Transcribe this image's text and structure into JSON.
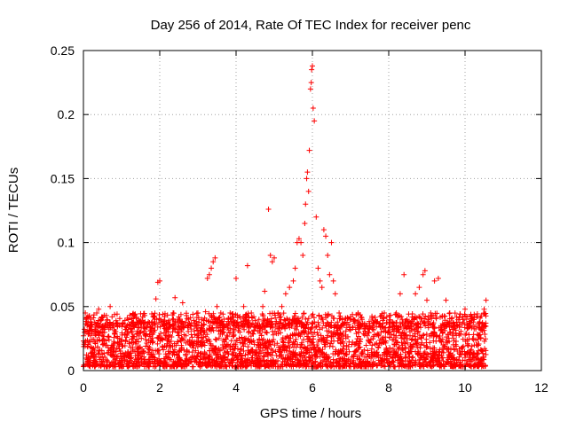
{
  "chart_data": {
    "type": "scatter",
    "title": "Day 256 of 2014, Rate Of TEC Index for receiver penc",
    "xlabel": "GPS time / hours",
    "ylabel": "ROTI / TECUs",
    "xlim": [
      0,
      12
    ],
    "ylim": [
      0,
      0.25
    ],
    "x_ticks": [
      0,
      2,
      4,
      6,
      8,
      10,
      12
    ],
    "y_ticks": [
      0,
      0.05,
      0.1,
      0.15,
      0.2,
      0.25
    ],
    "x_tick_labels": [
      "0",
      "2",
      "4",
      "6",
      "8",
      "10",
      "12"
    ],
    "y_tick_labels": [
      "0",
      "0.05",
      "0.1",
      "0.15",
      "0.2",
      "0.25"
    ],
    "grid": true,
    "marker": "+",
    "series": [
      {
        "name": "ROTI",
        "color": "#ff0000",
        "points": [
          [
            0.05,
            0.045
          ],
          [
            0.1,
            0.042
          ],
          [
            0.2,
            0.038
          ],
          [
            0.3,
            0.032
          ],
          [
            0.35,
            0.045
          ],
          [
            0.4,
            0.048
          ],
          [
            0.5,
            0.035
          ],
          [
            0.6,
            0.043
          ],
          [
            0.7,
            0.05
          ],
          [
            0.75,
            0.042
          ],
          [
            1.1,
            0.032
          ],
          [
            1.2,
            0.036
          ],
          [
            1.5,
            0.03
          ],
          [
            1.8,
            0.038
          ],
          [
            1.9,
            0.056
          ],
          [
            1.95,
            0.069
          ],
          [
            2.0,
            0.07
          ],
          [
            2.1,
            0.035
          ],
          [
            2.35,
            0.045
          ],
          [
            2.4,
            0.057
          ],
          [
            2.5,
            0.042
          ],
          [
            2.6,
            0.053
          ],
          [
            2.7,
            0.043
          ],
          [
            2.8,
            0.035
          ],
          [
            3.0,
            0.045
          ],
          [
            3.1,
            0.04
          ],
          [
            3.2,
            0.046
          ],
          [
            3.25,
            0.072
          ],
          [
            3.3,
            0.075
          ],
          [
            3.35,
            0.08
          ],
          [
            3.4,
            0.085
          ],
          [
            3.45,
            0.088
          ],
          [
            3.5,
            0.05
          ],
          [
            3.6,
            0.045
          ],
          [
            3.8,
            0.04
          ],
          [
            3.95,
            0.035
          ],
          [
            4.0,
            0.072
          ],
          [
            4.1,
            0.03
          ],
          [
            4.2,
            0.05
          ],
          [
            4.3,
            0.082
          ],
          [
            4.4,
            0.045
          ],
          [
            4.6,
            0.04
          ],
          [
            4.7,
            0.05
          ],
          [
            4.75,
            0.062
          ],
          [
            4.85,
            0.126
          ],
          [
            4.9,
            0.09
          ],
          [
            4.95,
            0.085
          ],
          [
            5.0,
            0.088
          ],
          [
            5.1,
            0.045
          ],
          [
            5.2,
            0.05
          ],
          [
            5.3,
            0.06
          ],
          [
            5.4,
            0.065
          ],
          [
            5.5,
            0.07
          ],
          [
            5.55,
            0.08
          ],
          [
            5.6,
            0.1
          ],
          [
            5.65,
            0.103
          ],
          [
            5.7,
            0.1
          ],
          [
            5.75,
            0.09
          ],
          [
            5.8,
            0.115
          ],
          [
            5.82,
            0.13
          ],
          [
            5.85,
            0.15
          ],
          [
            5.87,
            0.155
          ],
          [
            5.9,
            0.14
          ],
          [
            5.92,
            0.172
          ],
          [
            5.95,
            0.22
          ],
          [
            5.97,
            0.225
          ],
          [
            5.98,
            0.235
          ],
          [
            6.0,
            0.238
          ],
          [
            6.02,
            0.205
          ],
          [
            6.05,
            0.195
          ],
          [
            6.1,
            0.12
          ],
          [
            6.15,
            0.08
          ],
          [
            6.2,
            0.07
          ],
          [
            6.25,
            0.065
          ],
          [
            6.3,
            0.11
          ],
          [
            6.35,
            0.105
          ],
          [
            6.4,
            0.09
          ],
          [
            6.45,
            0.075
          ],
          [
            6.5,
            0.1
          ],
          [
            6.55,
            0.07
          ],
          [
            6.6,
            0.06
          ],
          [
            6.7,
            0.045
          ],
          [
            7.0,
            0.042
          ],
          [
            7.2,
            0.045
          ],
          [
            7.3,
            0.04
          ],
          [
            7.5,
            0.035
          ],
          [
            7.8,
            0.03
          ],
          [
            8.0,
            0.03
          ],
          [
            8.2,
            0.045
          ],
          [
            8.3,
            0.06
          ],
          [
            8.4,
            0.075
          ],
          [
            8.5,
            0.038
          ],
          [
            8.7,
            0.06
          ],
          [
            8.8,
            0.065
          ],
          [
            8.9,
            0.075
          ],
          [
            8.95,
            0.078
          ],
          [
            9.0,
            0.055
          ],
          [
            9.1,
            0.045
          ],
          [
            9.2,
            0.07
          ],
          [
            9.3,
            0.072
          ],
          [
            9.5,
            0.055
          ],
          [
            9.6,
            0.045
          ],
          [
            9.8,
            0.035
          ],
          [
            9.95,
            0.04
          ],
          [
            10.0,
            0.048
          ],
          [
            10.05,
            0.042
          ],
          [
            10.2,
            0.025
          ],
          [
            10.35,
            0.028
          ],
          [
            10.5,
            0.048
          ],
          [
            10.55,
            0.055
          ]
        ],
        "background_band": {
          "x_range": [
            0,
            10.55
          ],
          "y_min": 0.003,
          "y_max": 0.038,
          "description": "dense cluster of '+' markers"
        }
      }
    ]
  }
}
